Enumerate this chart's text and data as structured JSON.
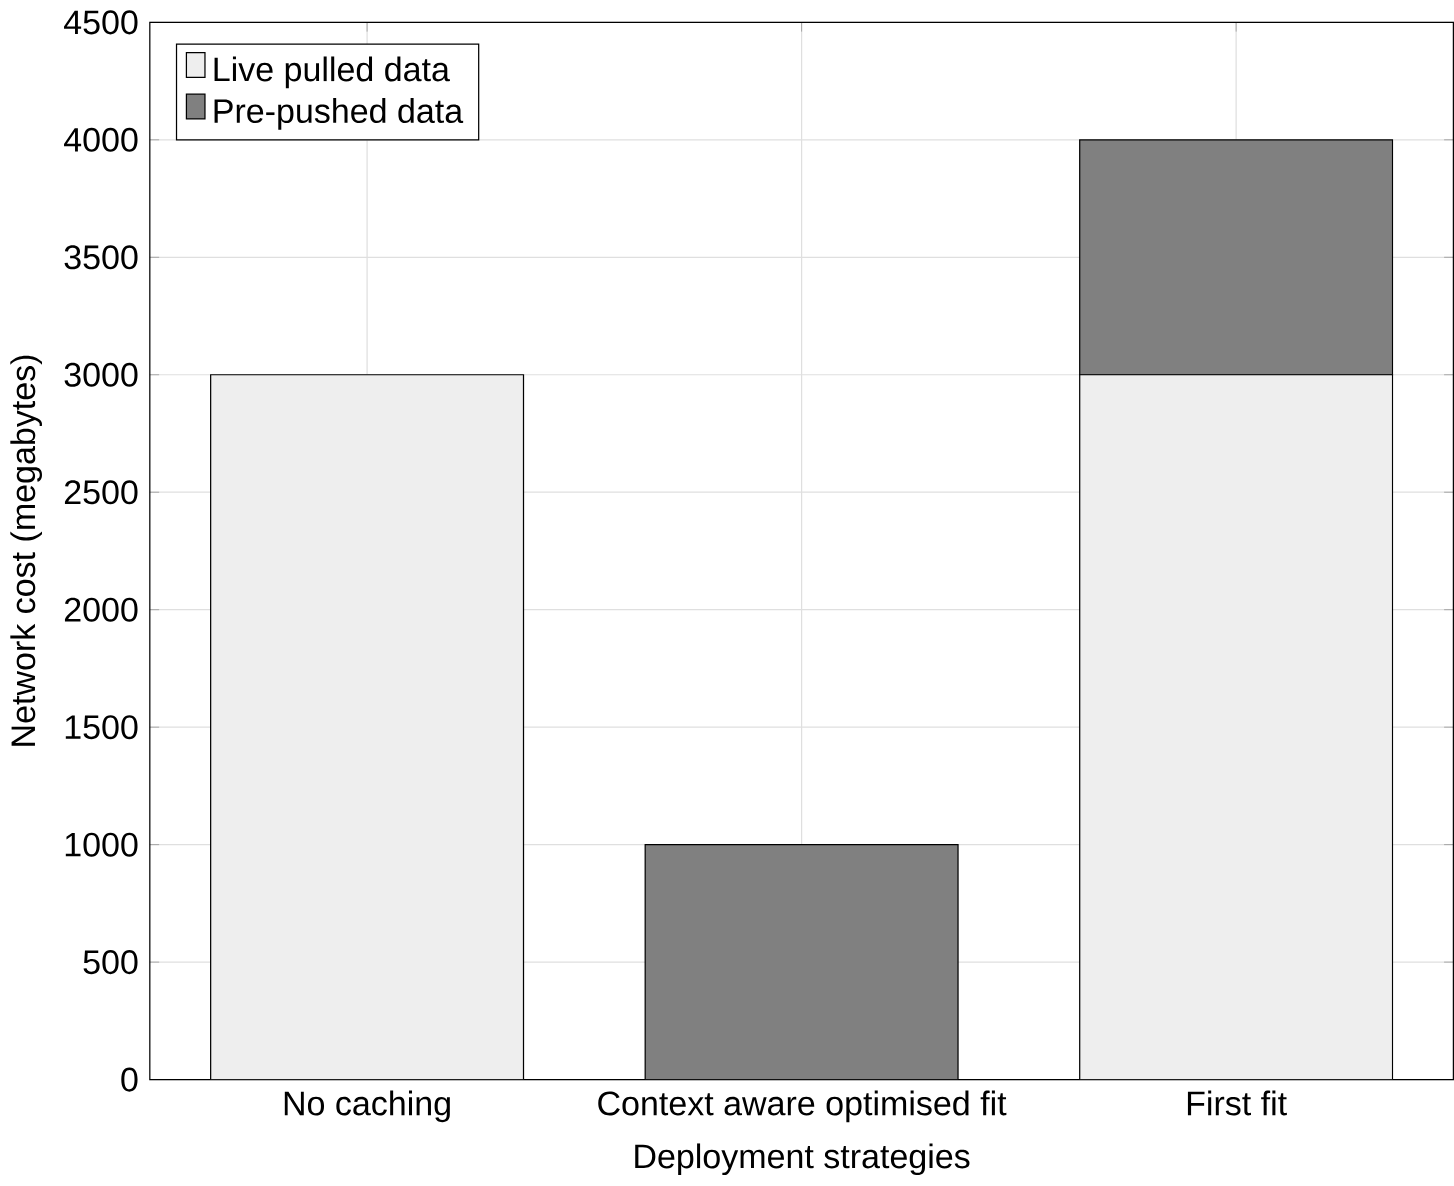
{
  "chart_data": {
    "type": "bar",
    "stacked": true,
    "xlabel": "Deployment strategies",
    "ylabel": "Network cost (megabytes)",
    "categories": [
      "No caching",
      "Context aware optimised fit",
      "First fit"
    ],
    "series": [
      {
        "name": "Live pulled data",
        "color": "#eeeeee",
        "values": [
          3000,
          0,
          3000
        ]
      },
      {
        "name": "Pre-pushed data",
        "color": "#808080",
        "values": [
          0,
          1000,
          1000
        ]
      }
    ],
    "ylim": [
      0,
      4500
    ],
    "yticks": [
      0,
      500,
      1000,
      1500,
      2000,
      2500,
      3000,
      3500,
      4000,
      4500
    ],
    "grid": true,
    "legend": "top left"
  }
}
